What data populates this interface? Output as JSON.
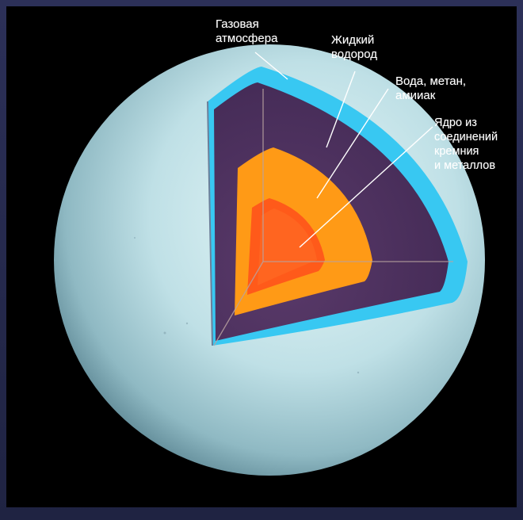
{
  "labels": {
    "gas_atmosphere": "Газовая\nатмосфера",
    "liquid_hydrogen": "Жидкий\nводород",
    "water_methane_ammonia": "Вода, метан,\nамииак",
    "core": "Ядро из\nсоединений\nкремния\nи металлов"
  },
  "colors": {
    "background": "#000000",
    "frame": "#262a4a",
    "planet_surface": "#b9dde4",
    "atmosphere": "#38c8f2",
    "liquid_hydrogen": "#4c2f5c",
    "mantle": "#ff9a16",
    "core": "#ff5a1a"
  }
}
